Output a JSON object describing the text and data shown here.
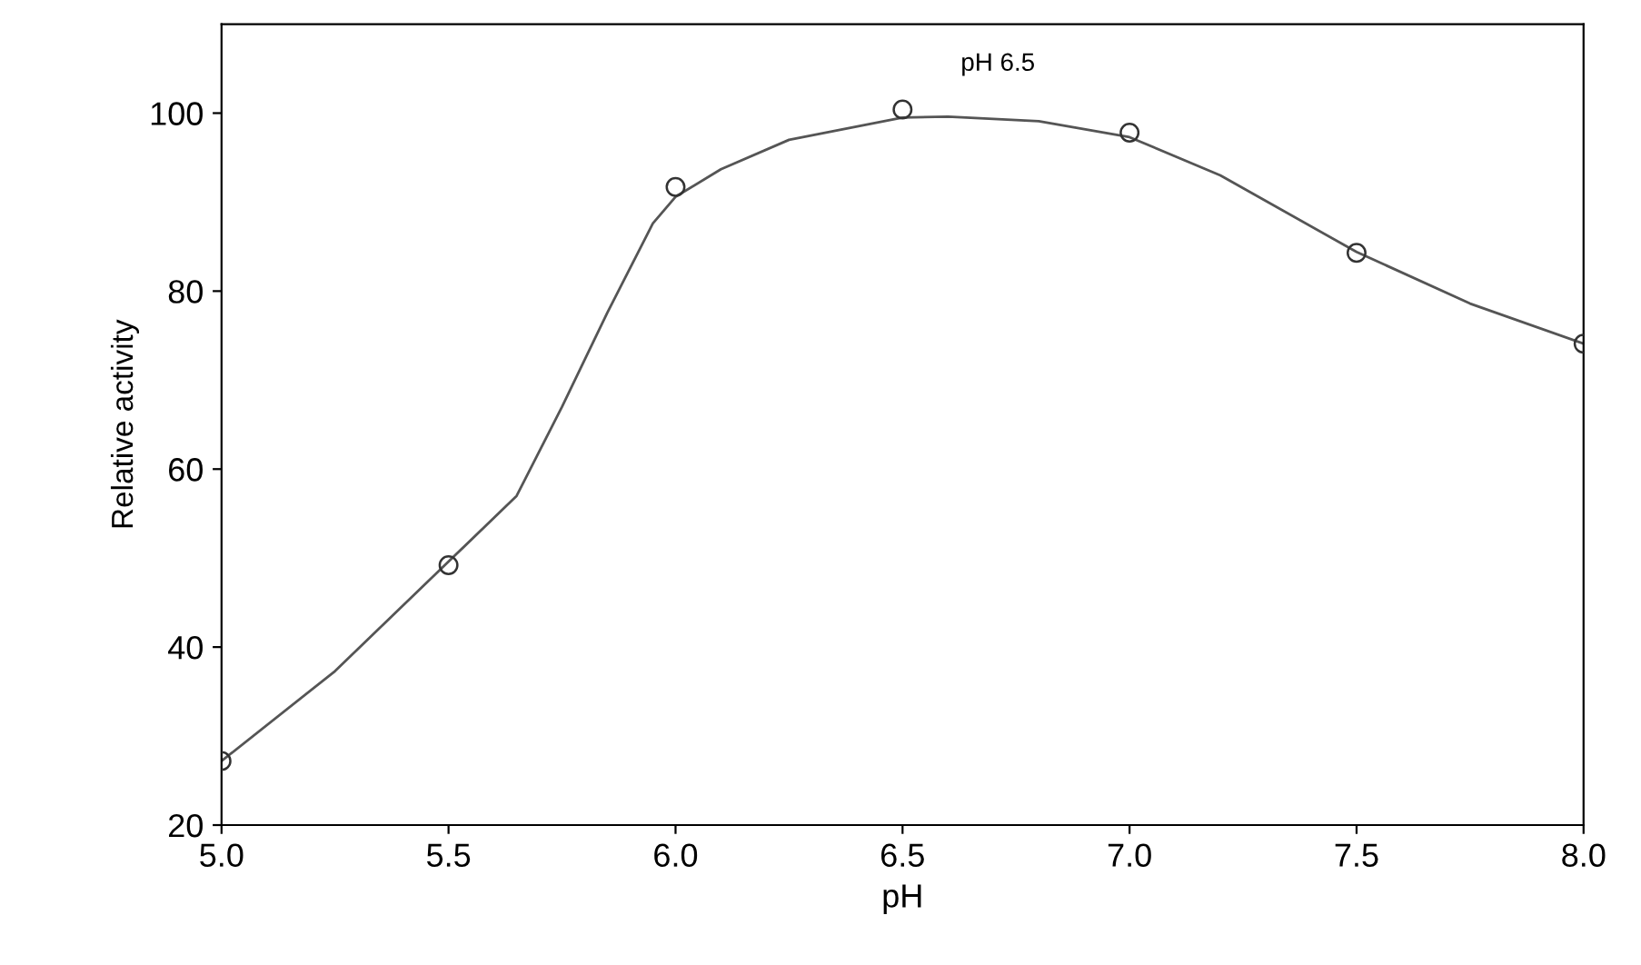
{
  "chart_data": {
    "type": "scatter",
    "xlabel": "pH",
    "ylabel": "Relative activity",
    "annotations": [
      "pH 6.5"
    ],
    "xlim": [
      5.0,
      8.0
    ],
    "xticks": [
      {
        "value": 5.0,
        "label": "5.0"
      },
      {
        "value": 5.5,
        "label": "5.5"
      },
      {
        "value": 6.0,
        "label": "6.0"
      },
      {
        "value": 6.5,
        "label": "6.5"
      },
      {
        "value": 7.0,
        "label": "7.0"
      },
      {
        "value": 7.5,
        "label": "7.5"
      },
      {
        "value": 8.0,
        "label": "8.0"
      }
    ],
    "ylim": [
      20,
      110
    ],
    "yticks": [
      20,
      40,
      60,
      80,
      100
    ],
    "grid": false,
    "legend": false,
    "series": [
      {
        "marker": "circle",
        "color": "#333333",
        "x": [
          5.0,
          5.5,
          6.0,
          6.5,
          7.0,
          7.5,
          8.0
        ],
        "values": [
          27.2,
          49.2,
          91.7,
          100.4,
          97.8,
          84.3,
          74.1
        ]
      },
      {
        "type": "line",
        "marker": "none",
        "color": "#555555",
        "line_style": "solid",
        "x": [
          5.0,
          5.25,
          5.5,
          5.65,
          5.75,
          5.85,
          5.95,
          6.0,
          6.1,
          6.25,
          6.5,
          6.6,
          6.8,
          7.0,
          7.2,
          7.5,
          7.75,
          8.0
        ],
        "values": [
          27.2,
          37.3,
          49.6,
          57,
          67,
          77.6,
          87.6,
          90.6,
          93.7,
          97,
          99.5,
          99.6,
          99.1,
          97.3,
          93,
          84.4,
          78.6,
          74.1
        ]
      }
    ]
  }
}
